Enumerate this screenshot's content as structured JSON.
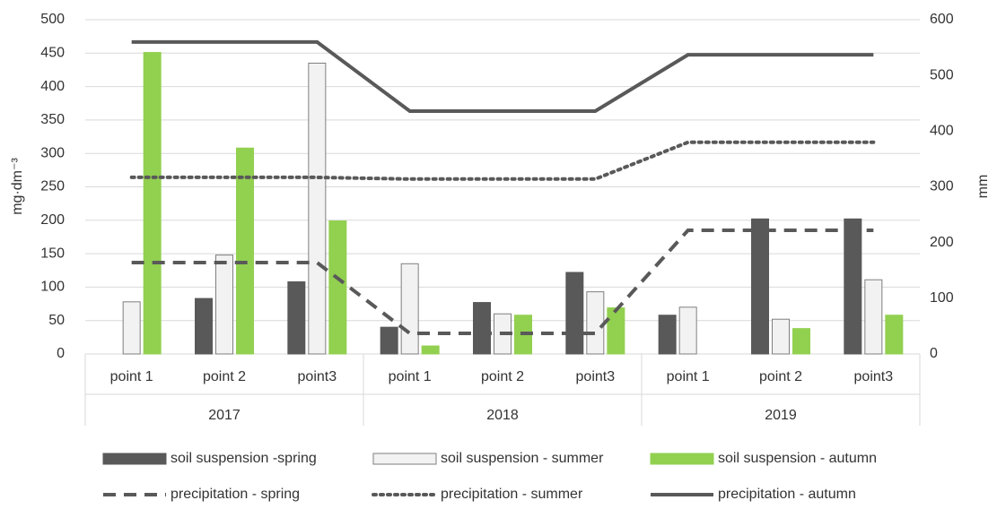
{
  "chart_data": {
    "type": "combo",
    "categories": [
      "point 1",
      "point 2",
      "point3",
      "point 1",
      "point 2",
      "point3",
      "point 1",
      "point 2",
      "point3"
    ],
    "category_groups": [
      "2017",
      "2018",
      "2019"
    ],
    "ylabel": "mg·dm⁻³",
    "y2label": "mm",
    "ylim": [
      0,
      500
    ],
    "yticks": [
      0,
      50,
      100,
      150,
      200,
      250,
      300,
      350,
      400,
      450,
      500
    ],
    "y2lim": [
      0,
      600
    ],
    "y2ticks": [
      0,
      100,
      200,
      300,
      400,
      500,
      600
    ],
    "grid": true,
    "series": [
      {
        "name": "soil suspension -spring",
        "type": "bar",
        "color": "#595959",
        "values": [
          null,
          83,
          108,
          40,
          77,
          122,
          58,
          202,
          202
        ]
      },
      {
        "name": "soil suspension - summer",
        "type": "bar",
        "color": "#f2f2f2",
        "values": [
          78,
          148,
          435,
          135,
          60,
          93,
          70,
          52,
          111
        ]
      },
      {
        "name": "soil suspension - autumn",
        "type": "bar",
        "color": "#92d050",
        "values": [
          451,
          308,
          199,
          12,
          58,
          69,
          null,
          38,
          58
        ]
      },
      {
        "name": "precipitation - spring",
        "type": "line",
        "axis": "y2",
        "dash": "dashed",
        "color": "#595959",
        "values": [
          164,
          164,
          164,
          37,
          37,
          37,
          222,
          222,
          222
        ]
      },
      {
        "name": "precipitation - summer",
        "type": "line",
        "axis": "y2",
        "dash": "dotted",
        "color": "#595959",
        "values": [
          317,
          317,
          317,
          314,
          314,
          314,
          380,
          380,
          380
        ]
      },
      {
        "name": "precipitation - autumn",
        "type": "line",
        "axis": "y2",
        "dash": "solid",
        "color": "#595959",
        "values": [
          560,
          560,
          560,
          436,
          436,
          436,
          537,
          537,
          537
        ]
      }
    ]
  }
}
